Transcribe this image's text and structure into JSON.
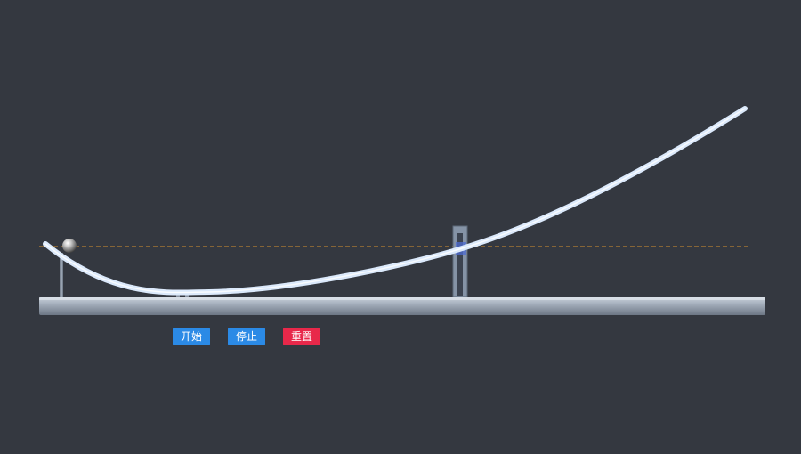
{
  "controls": {
    "start_label": "开始",
    "stop_label": "停止",
    "reset_label": "重置"
  },
  "colors": {
    "background": "#343840",
    "track": "#dbe9fb",
    "base": "#9ea8b6",
    "reference_line": "#d9922e",
    "start_button": "#2b8ae6",
    "stop_button": "#2b8ae6",
    "reset_button": "#e8284a"
  },
  "icons": {
    "ball": "steel-ball-icon"
  }
}
